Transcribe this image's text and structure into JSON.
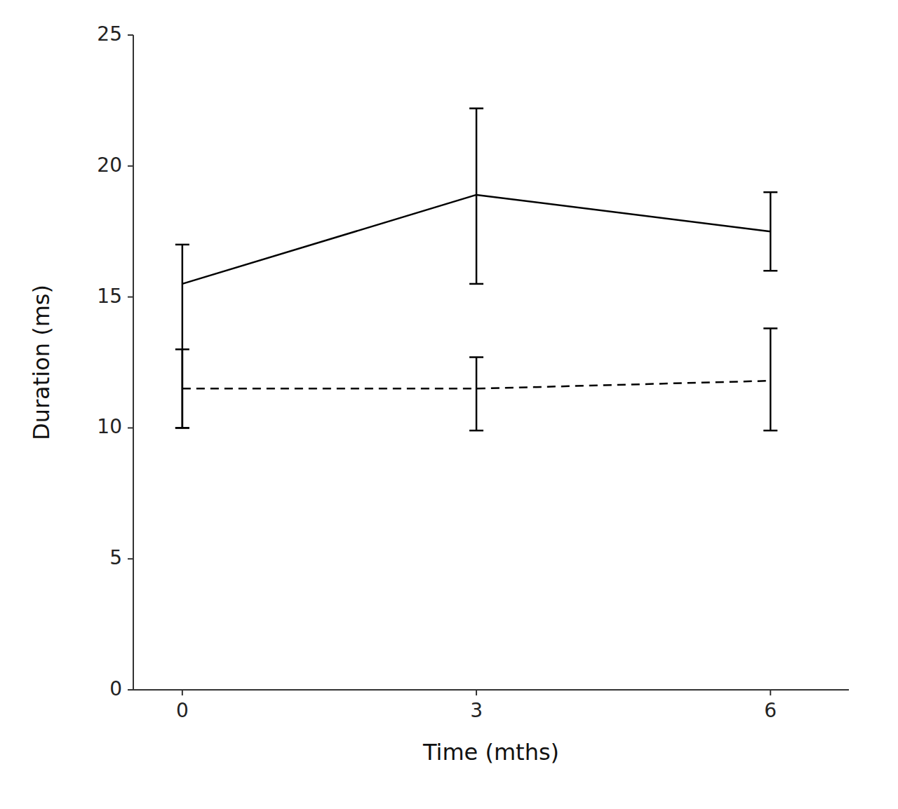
{
  "chart_data": {
    "type": "line",
    "xlabel": "Time (mths)",
    "ylabel": "Duration (ms)",
    "x": [
      0,
      3,
      6
    ],
    "xlim": [
      -0.5,
      6.8
    ],
    "xticks": [
      0,
      3,
      6
    ],
    "ylim": [
      0,
      25
    ],
    "yticks": [
      0,
      5,
      10,
      15,
      20,
      25
    ],
    "grid": false,
    "series": [
      {
        "color": "#000000",
        "line_style": "solid",
        "values": [
          15.5,
          18.9,
          17.5
        ],
        "error_low": [
          5.5,
          3.4,
          1.5
        ],
        "error_high": [
          1.5,
          3.3,
          1.5
        ]
      },
      {
        "color": "#000000",
        "line_style": "dashed",
        "values": [
          11.5,
          11.5,
          11.8
        ],
        "error_low": [
          1.5,
          1.6,
          1.9
        ],
        "error_high": [
          1.5,
          1.2,
          2.0
        ]
      }
    ]
  }
}
